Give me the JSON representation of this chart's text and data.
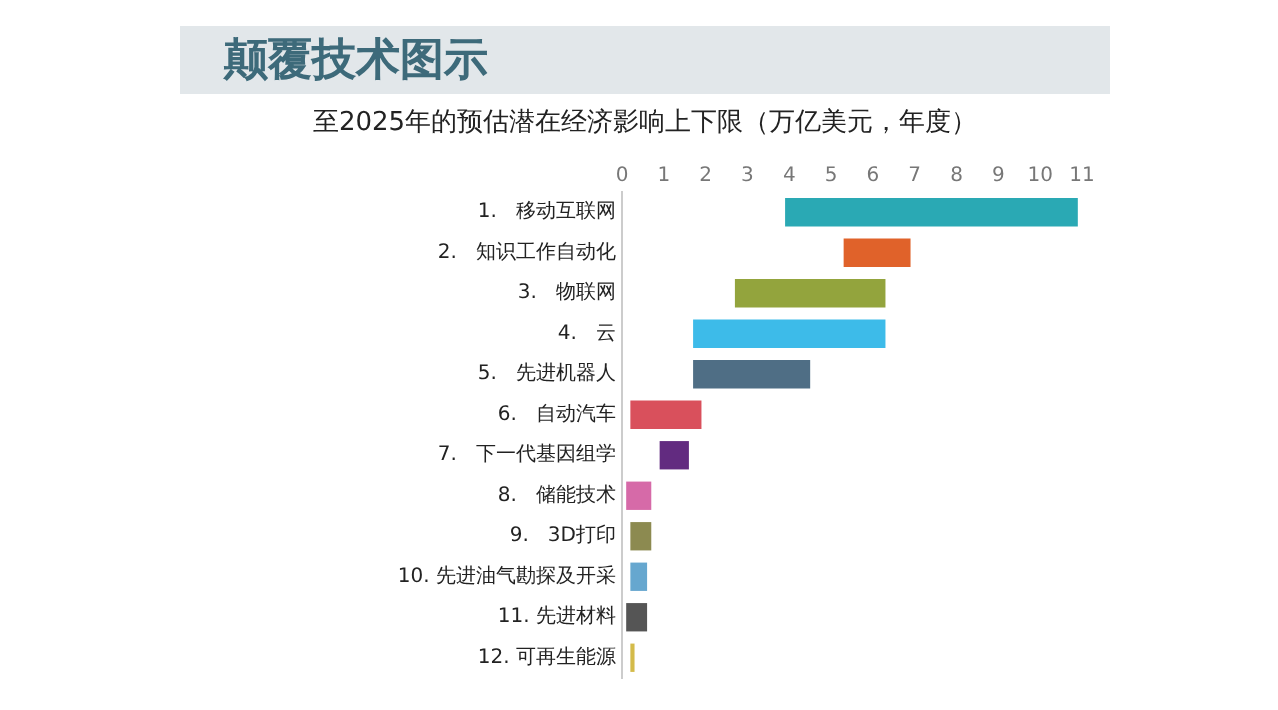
{
  "chart_data": {
    "type": "bar",
    "orientation": "horizontal",
    "title": "颠覆技术图示",
    "subtitle": "至2025年的预估潜在经济影响上下限（万亿美元，年度）",
    "categories": [
      "1.   移动互联网",
      "2.   知识工作自动化",
      "3.   物联网",
      "4.   云",
      "5.   先进机器人",
      "6.   自动汽车",
      "7.   下一代基因组学",
      "8.   储能技术",
      "9.   3D打印",
      "10. 先进油气勘探及开采",
      "11. 先进材料",
      "12. 可再生能源"
    ],
    "base": [
      3.9,
      5.3,
      2.7,
      1.7,
      1.7,
      0.2,
      0.9,
      0.1,
      0.2,
      0.2,
      0.1,
      0.2
    ],
    "values": [
      7.0,
      1.6,
      3.6,
      4.6,
      2.8,
      1.7,
      0.7,
      0.6,
      0.5,
      0.4,
      0.5,
      0.1
    ],
    "colors": [
      "#2aa9b4",
      "#e0622a",
      "#93a43d",
      "#3dbbe9",
      "#4f6e85",
      "#d9505c",
      "#622b80",
      "#d66aa8",
      "#8c8a50",
      "#66a7cf",
      "#555555",
      "#d4bb4a"
    ],
    "xlim": [
      0,
      11
    ],
    "xticks": [
      0,
      1,
      2,
      3,
      4,
      5,
      6,
      7,
      8,
      9,
      10,
      11
    ],
    "grid": false
  }
}
